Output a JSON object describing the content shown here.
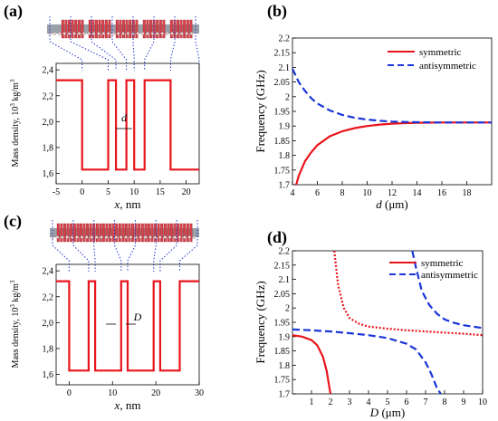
{
  "chart_data": [
    {
      "panel": "(a)",
      "type": "line",
      "xlabel_var": "x",
      "xlabel_unit": ", nm",
      "ylabel_main": "Mass density, 10",
      "ylabel_sup": "3",
      "ylabel_unit": " kg/m",
      "ylabel_sup2": "3",
      "xlim": [
        -5,
        22.5
      ],
      "ylim": [
        1.52,
        2.45
      ],
      "xticks": [
        -5,
        0,
        5,
        10,
        15,
        20
      ],
      "yticks": [
        1.6,
        1.8,
        2.0,
        2.2,
        2.4
      ],
      "ytick_labels": [
        "1,6",
        "1,8",
        "2,0",
        "2,2",
        "2,4"
      ],
      "annotation": "d",
      "series": [
        {
          "color": "#e8141b",
          "x": [
            -5,
            0,
            0,
            5,
            5,
            6.5,
            6.5,
            8.5,
            8.5,
            10,
            10,
            12,
            12,
            17,
            17,
            22.5
          ],
          "y": [
            2.32,
            2.32,
            1.63,
            1.63,
            2.32,
            2.32,
            1.63,
            1.63,
            2.32,
            2.32,
            1.63,
            1.63,
            2.32,
            2.32,
            1.63,
            1.63
          ]
        }
      ]
    },
    {
      "panel": "(b)",
      "type": "line",
      "xlabel_var": "d",
      "xlabel_unit": " (μm)",
      "ylabel": "Frequency (GHz)",
      "xlim": [
        4,
        20
      ],
      "ylim": [
        1.7,
        2.2
      ],
      "xticks": [
        4,
        6,
        8,
        10,
        12,
        14,
        16,
        18
      ],
      "yticks": [
        1.7,
        1.75,
        1.8,
        1.85,
        1.9,
        1.95,
        2.0,
        2.05,
        2.1,
        2.15,
        2.2
      ],
      "ytick_labels": [
        "1.7",
        "1.75",
        "1.8",
        "1.85",
        "1.9",
        "1.95",
        "2",
        "2.05",
        "2.1",
        "2.15",
        "2.2"
      ],
      "legend_position": "top-right",
      "series": [
        {
          "name": "symmetric",
          "color": "#e8141b",
          "dash": "solid",
          "x": [
            4.3,
            4.5,
            5,
            5.5,
            6,
            7,
            8,
            9,
            10,
            11,
            12,
            13,
            14,
            16,
            18,
            20
          ],
          "y": [
            1.7,
            1.73,
            1.78,
            1.81,
            1.835,
            1.865,
            1.882,
            1.893,
            1.9,
            1.905,
            1.908,
            1.91,
            1.911,
            1.912,
            1.912,
            1.912
          ]
        },
        {
          "name": "antisymmetric",
          "color": "#1a35d8",
          "dash": "dashed",
          "x": [
            4,
            4.5,
            5,
            5.5,
            6,
            7,
            8,
            9,
            10,
            11,
            12,
            13,
            14,
            16,
            18,
            20
          ],
          "y": [
            2.095,
            2.05,
            2.02,
            1.995,
            1.977,
            1.953,
            1.938,
            1.928,
            1.922,
            1.918,
            1.915,
            1.914,
            1.913,
            1.912,
            1.912,
            1.912
          ]
        }
      ]
    },
    {
      "panel": "(c)",
      "type": "line",
      "xlabel_var": "x",
      "xlabel_unit": ", nm",
      "ylabel_main": "Mass density, 10",
      "ylabel_sup": "3",
      "ylabel_unit": " kg/m",
      "ylabel_sup2": "3",
      "xlim": [
        -3,
        30
      ],
      "ylim": [
        1.52,
        2.45
      ],
      "xticks": [
        0,
        10,
        20,
        30
      ],
      "yticks": [
        1.6,
        1.8,
        2.0,
        2.2,
        2.4
      ],
      "ytick_labels": [
        "1,6",
        "1,8",
        "2,0",
        "2,2",
        "2,4"
      ],
      "annotation": "D",
      "series": [
        {
          "color": "#e8141b",
          "x": [
            -3,
            0,
            0,
            4.5,
            4.5,
            6,
            6,
            12,
            12,
            13.5,
            13.5,
            19.5,
            19.5,
            21,
            21,
            25.5,
            25.5,
            30
          ],
          "y": [
            2.32,
            2.32,
            1.63,
            1.63,
            2.32,
            2.32,
            1.63,
            1.63,
            2.32,
            2.32,
            1.63,
            1.63,
            2.32,
            2.32,
            1.63,
            1.63,
            2.32,
            2.32
          ]
        }
      ]
    },
    {
      "panel": "(d)",
      "type": "line",
      "xlabel_var": "D",
      "xlabel_unit": " (μm)",
      "ylabel": "Frequency (GHz)",
      "xlim": [
        0,
        10
      ],
      "ylim": [
        1.7,
        2.2
      ],
      "xticks": [
        1,
        2,
        3,
        4,
        5,
        6,
        7,
        8,
        9,
        10
      ],
      "yticks": [
        1.7,
        1.75,
        1.8,
        1.85,
        1.9,
        1.95,
        2.0,
        2.05,
        2.1,
        2.15,
        2.2
      ],
      "ytick_labels": [
        "1.7",
        "1.75",
        "1.8",
        "1.85",
        "1.9",
        "1.95",
        "2",
        "2.05",
        "2.1",
        "2.15",
        "2.2"
      ],
      "legend_position": "top-right",
      "series": [
        {
          "name": "symmetric",
          "color": "#e8141b",
          "dash": "solid",
          "x": [
            0,
            0.5,
            1,
            1.3,
            1.6,
            1.8,
            1.95,
            2.0
          ],
          "y": [
            1.905,
            1.9,
            1.888,
            1.87,
            1.83,
            1.78,
            1.72,
            1.7
          ]
        },
        {
          "name": "antisymmetric",
          "color": "#1a35d8",
          "dash": "dashed",
          "x": [
            0,
            1,
            2,
            3,
            4,
            5,
            6,
            6.5,
            7,
            7.3,
            7.6,
            7.8
          ],
          "y": [
            1.925,
            1.922,
            1.918,
            1.912,
            1.905,
            1.895,
            1.875,
            1.855,
            1.81,
            1.77,
            1.72,
            1.7
          ]
        },
        {
          "color": "#e8141b",
          "dash": "dotted",
          "x": [
            2.2,
            2.4,
            2.7,
            3,
            3.5,
            4,
            5,
            6,
            7,
            8,
            9,
            10
          ],
          "y": [
            2.2,
            2.08,
            2.0,
            1.965,
            1.945,
            1.935,
            1.928,
            1.922,
            1.918,
            1.914,
            1.91,
            1.905
          ]
        },
        {
          "color": "#1a35d8",
          "dash": "dashed",
          "x": [
            6.3,
            6.5,
            6.8,
            7.2,
            7.6,
            8,
            8.5,
            9,
            10
          ],
          "y": [
            2.2,
            2.14,
            2.06,
            2.01,
            1.98,
            1.96,
            1.948,
            1.94,
            1.93
          ]
        }
      ]
    }
  ]
}
